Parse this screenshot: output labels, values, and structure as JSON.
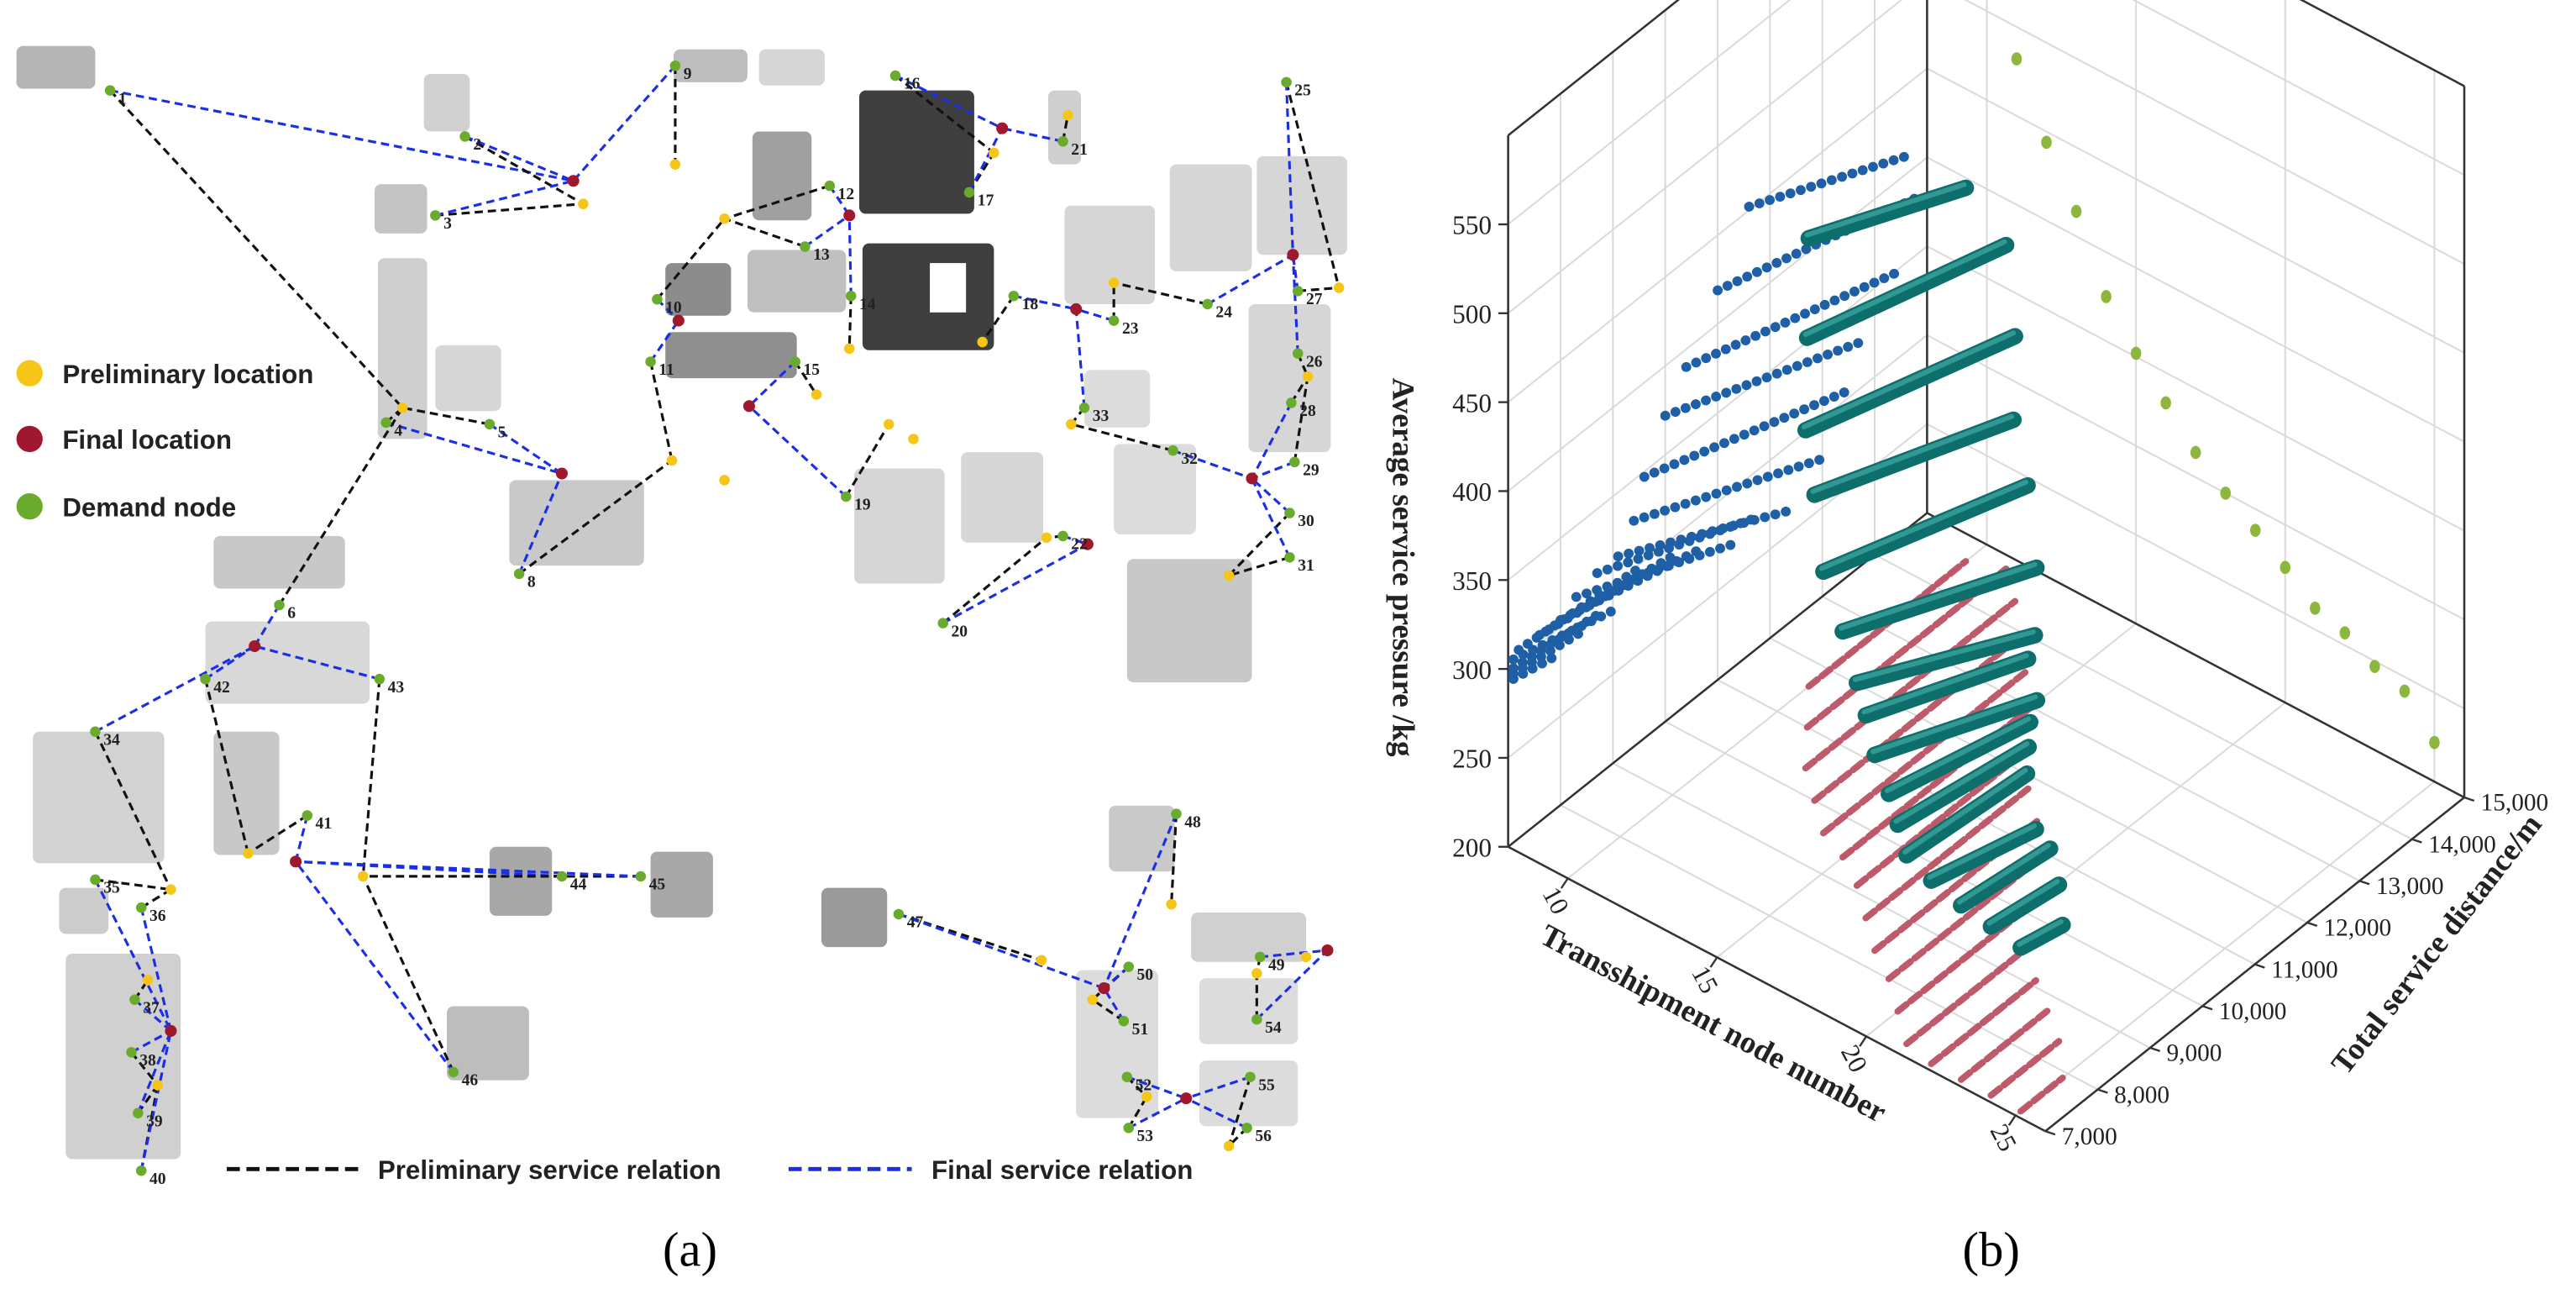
{
  "diagram": {
    "legend": {
      "preliminary_location": "Preliminary location",
      "final_location": "Final location",
      "demand_node": "Demand node",
      "preliminary_relation": "Preliminary service relation",
      "final_relation": "Final service relation"
    },
    "node_labels": [
      1,
      2,
      3,
      4,
      5,
      6,
      8,
      9,
      10,
      11,
      12,
      13,
      14,
      15,
      16,
      17,
      18,
      19,
      20,
      21,
      22,
      23,
      24,
      25,
      26,
      27,
      28,
      29,
      30,
      31,
      32,
      33,
      34,
      35,
      36,
      37,
      38,
      39,
      40,
      41,
      42,
      43,
      44,
      45,
      46,
      47,
      48,
      49,
      50,
      51,
      52,
      53,
      54,
      55,
      56
    ]
  },
  "panel_labels": [
    "(a)",
    "(b)"
  ],
  "chart_data": {
    "type": "scatter3d",
    "xlabel": "Transshipment node number",
    "ylabel": "Total service distance/m",
    "zlabel": "Average service pressure /kg",
    "xlim": [
      8,
      26
    ],
    "xticks": [
      10,
      15,
      20,
      25
    ],
    "ylim": [
      7000,
      15000
    ],
    "yticks": [
      {
        "value": 7000,
        "label": "7,000"
      },
      {
        "value": 8000,
        "label": "8,000"
      },
      {
        "value": 9000,
        "label": "9,000"
      },
      {
        "value": 10000,
        "label": "10,000"
      },
      {
        "value": 11000,
        "label": "11,000"
      },
      {
        "value": 12000,
        "label": "12,000"
      },
      {
        "value": 13000,
        "label": "13,000"
      },
      {
        "value": 14000,
        "label": "14,000"
      },
      {
        "value": 15000,
        "label": "15,000"
      }
    ],
    "zlim": [
      200,
      600
    ],
    "zticks": [
      200,
      250,
      300,
      350,
      400,
      450,
      500,
      550
    ],
    "grid": true,
    "rods": {
      "color": "#0d6e6b",
      "node_number": [
        10,
        11,
        12,
        13,
        14,
        15,
        16,
        17,
        18,
        19,
        20,
        21,
        22,
        23,
        24,
        25
      ],
      "distance_start": [
        11600,
        11000,
        10400,
        10000,
        9600,
        9400,
        9100,
        8700,
        8300,
        8000,
        7600,
        7200,
        7100,
        7100,
        7100,
        7100
      ],
      "distance_end": [
        14600,
        14800,
        14400,
        13800,
        13500,
        13100,
        12500,
        11800,
        11400,
        10700,
        10100,
        9500,
        9100,
        8800,
        8400,
        7900
      ],
      "pressure_start": [
        452,
        419,
        390,
        372,
        347,
        327,
        314,
        314,
        310,
        304,
        305,
        306,
        303,
        298,
        295,
        292
      ],
      "pressure_end": [
        410,
        382,
        349,
        325,
        304,
        276,
        261,
        273,
        268,
        281,
        290,
        298,
        285,
        290,
        288,
        286
      ]
    },
    "distance_pressure_color": "#1f5fa6",
    "node_distance_color": "#b84a5c",
    "node_pressure": {
      "color": "#8cb63c",
      "node_number": [
        11,
        12,
        13,
        14,
        15,
        16,
        17,
        18,
        19,
        20,
        21,
        22,
        23,
        24,
        25
      ],
      "pressure": [
        482,
        444,
        414,
        375,
        352,
        333,
        314,
        300,
        288,
        276,
        262,
        257,
        247,
        242,
        222
      ]
    }
  }
}
